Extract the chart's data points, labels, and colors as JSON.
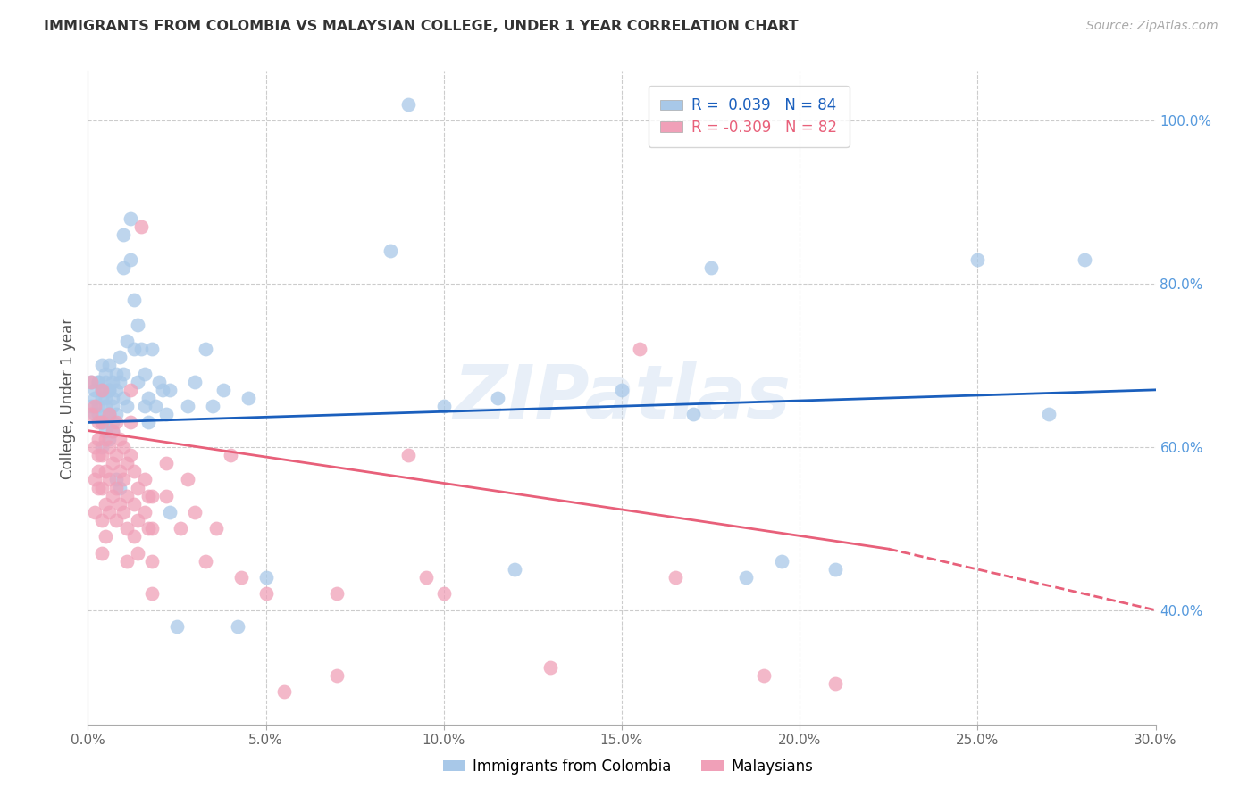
{
  "title": "IMMIGRANTS FROM COLOMBIA VS MALAYSIAN COLLEGE, UNDER 1 YEAR CORRELATION CHART",
  "source": "Source: ZipAtlas.com",
  "ylabel": "College, Under 1 year",
  "watermark": "ZIPatlas",
  "blue_color": "#a8c8e8",
  "pink_color": "#f0a0b8",
  "blue_line_color": "#1a5fbd",
  "pink_line_color": "#e8607a",
  "background": "#ffffff",
  "grid_color": "#cccccc",
  "title_color": "#333333",
  "right_axis_color": "#5599dd",
  "xmin": 0.0,
  "xmax": 0.3,
  "ymin": 0.26,
  "ymax": 1.06,
  "blue_line_y0": 0.63,
  "blue_line_y1": 0.67,
  "pink_line_y0": 0.62,
  "pink_line_y1_solid": 0.475,
  "pink_solid_xend": 0.225,
  "pink_line_y1_dash": 0.4,
  "blue_points": [
    [
      0.001,
      0.68
    ],
    [
      0.001,
      0.65
    ],
    [
      0.002,
      0.67
    ],
    [
      0.002,
      0.64
    ],
    [
      0.002,
      0.66
    ],
    [
      0.003,
      0.68
    ],
    [
      0.003,
      0.65
    ],
    [
      0.003,
      0.68
    ],
    [
      0.003,
      0.64
    ],
    [
      0.004,
      0.67
    ],
    [
      0.004,
      0.63
    ],
    [
      0.004,
      0.7
    ],
    [
      0.004,
      0.66
    ],
    [
      0.004,
      0.63
    ],
    [
      0.004,
      0.6
    ],
    [
      0.005,
      0.68
    ],
    [
      0.005,
      0.65
    ],
    [
      0.005,
      0.62
    ],
    [
      0.005,
      0.69
    ],
    [
      0.005,
      0.66
    ],
    [
      0.005,
      0.63
    ],
    [
      0.006,
      0.67
    ],
    [
      0.006,
      0.64
    ],
    [
      0.006,
      0.61
    ],
    [
      0.006,
      0.7
    ],
    [
      0.006,
      0.67
    ],
    [
      0.006,
      0.64
    ],
    [
      0.007,
      0.68
    ],
    [
      0.007,
      0.65
    ],
    [
      0.007,
      0.62
    ],
    [
      0.007,
      0.66
    ],
    [
      0.007,
      0.63
    ],
    [
      0.008,
      0.69
    ],
    [
      0.008,
      0.56
    ],
    [
      0.008,
      0.67
    ],
    [
      0.008,
      0.64
    ],
    [
      0.009,
      0.71
    ],
    [
      0.009,
      0.68
    ],
    [
      0.009,
      0.55
    ],
    [
      0.01,
      0.86
    ],
    [
      0.01,
      0.82
    ],
    [
      0.01,
      0.69
    ],
    [
      0.01,
      0.66
    ],
    [
      0.011,
      0.73
    ],
    [
      0.011,
      0.65
    ],
    [
      0.012,
      0.88
    ],
    [
      0.012,
      0.83
    ],
    [
      0.013,
      0.78
    ],
    [
      0.013,
      0.72
    ],
    [
      0.014,
      0.75
    ],
    [
      0.014,
      0.68
    ],
    [
      0.015,
      0.72
    ],
    [
      0.016,
      0.65
    ],
    [
      0.016,
      0.69
    ],
    [
      0.017,
      0.63
    ],
    [
      0.017,
      0.66
    ],
    [
      0.018,
      0.72
    ],
    [
      0.019,
      0.65
    ],
    [
      0.02,
      0.68
    ],
    [
      0.021,
      0.67
    ],
    [
      0.022,
      0.64
    ],
    [
      0.023,
      0.67
    ],
    [
      0.023,
      0.52
    ],
    [
      0.025,
      0.38
    ],
    [
      0.028,
      0.65
    ],
    [
      0.03,
      0.68
    ],
    [
      0.033,
      0.72
    ],
    [
      0.035,
      0.65
    ],
    [
      0.038,
      0.67
    ],
    [
      0.042,
      0.38
    ],
    [
      0.045,
      0.66
    ],
    [
      0.05,
      0.44
    ],
    [
      0.085,
      0.84
    ],
    [
      0.09,
      1.02
    ],
    [
      0.1,
      0.65
    ],
    [
      0.115,
      0.66
    ],
    [
      0.12,
      0.45
    ],
    [
      0.15,
      0.67
    ],
    [
      0.17,
      0.64
    ],
    [
      0.175,
      0.82
    ],
    [
      0.185,
      0.44
    ],
    [
      0.195,
      0.46
    ],
    [
      0.21,
      0.45
    ],
    [
      0.25,
      0.83
    ],
    [
      0.27,
      0.64
    ],
    [
      0.28,
      0.83
    ]
  ],
  "pink_points": [
    [
      0.001,
      0.68
    ],
    [
      0.001,
      0.64
    ],
    [
      0.002,
      0.6
    ],
    [
      0.002,
      0.56
    ],
    [
      0.002,
      0.52
    ],
    [
      0.002,
      0.65
    ],
    [
      0.003,
      0.61
    ],
    [
      0.003,
      0.57
    ],
    [
      0.003,
      0.63
    ],
    [
      0.003,
      0.59
    ],
    [
      0.003,
      0.55
    ],
    [
      0.004,
      0.67
    ],
    [
      0.004,
      0.63
    ],
    [
      0.004,
      0.59
    ],
    [
      0.004,
      0.55
    ],
    [
      0.004,
      0.51
    ],
    [
      0.004,
      0.47
    ],
    [
      0.005,
      0.61
    ],
    [
      0.005,
      0.57
    ],
    [
      0.005,
      0.53
    ],
    [
      0.005,
      0.49
    ],
    [
      0.006,
      0.64
    ],
    [
      0.006,
      0.6
    ],
    [
      0.006,
      0.56
    ],
    [
      0.006,
      0.52
    ],
    [
      0.007,
      0.62
    ],
    [
      0.007,
      0.58
    ],
    [
      0.007,
      0.54
    ],
    [
      0.008,
      0.63
    ],
    [
      0.008,
      0.59
    ],
    [
      0.008,
      0.55
    ],
    [
      0.008,
      0.51
    ],
    [
      0.009,
      0.61
    ],
    [
      0.009,
      0.57
    ],
    [
      0.009,
      0.53
    ],
    [
      0.01,
      0.6
    ],
    [
      0.01,
      0.56
    ],
    [
      0.01,
      0.52
    ],
    [
      0.011,
      0.58
    ],
    [
      0.011,
      0.54
    ],
    [
      0.011,
      0.5
    ],
    [
      0.011,
      0.46
    ],
    [
      0.012,
      0.67
    ],
    [
      0.012,
      0.63
    ],
    [
      0.012,
      0.59
    ],
    [
      0.013,
      0.57
    ],
    [
      0.013,
      0.53
    ],
    [
      0.013,
      0.49
    ],
    [
      0.014,
      0.55
    ],
    [
      0.014,
      0.51
    ],
    [
      0.014,
      0.47
    ],
    [
      0.015,
      0.87
    ],
    [
      0.016,
      0.56
    ],
    [
      0.016,
      0.52
    ],
    [
      0.017,
      0.54
    ],
    [
      0.017,
      0.5
    ],
    [
      0.018,
      0.54
    ],
    [
      0.018,
      0.5
    ],
    [
      0.018,
      0.46
    ],
    [
      0.018,
      0.42
    ],
    [
      0.022,
      0.54
    ],
    [
      0.022,
      0.58
    ],
    [
      0.026,
      0.5
    ],
    [
      0.028,
      0.56
    ],
    [
      0.03,
      0.52
    ],
    [
      0.033,
      0.46
    ],
    [
      0.036,
      0.5
    ],
    [
      0.04,
      0.59
    ],
    [
      0.043,
      0.44
    ],
    [
      0.05,
      0.42
    ],
    [
      0.055,
      0.3
    ],
    [
      0.07,
      0.42
    ],
    [
      0.07,
      0.32
    ],
    [
      0.09,
      0.59
    ],
    [
      0.095,
      0.44
    ],
    [
      0.1,
      0.42
    ],
    [
      0.13,
      0.33
    ],
    [
      0.155,
      0.72
    ],
    [
      0.165,
      0.44
    ],
    [
      0.19,
      0.32
    ],
    [
      0.21,
      0.31
    ]
  ]
}
